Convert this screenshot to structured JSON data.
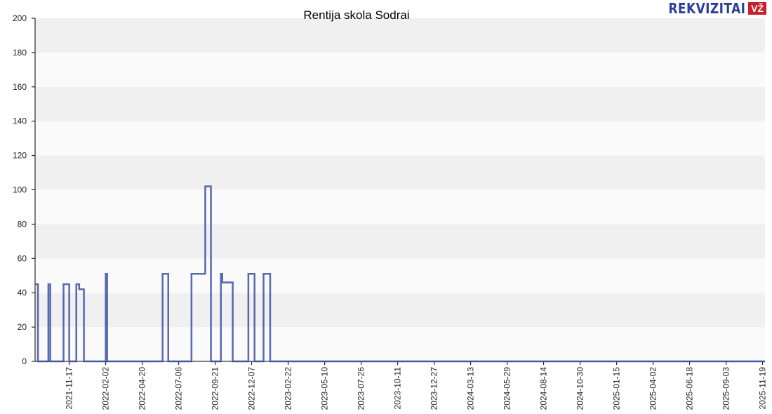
{
  "chart_data": {
    "type": "line",
    "title": "Rentija skola Sodrai",
    "xlabel": "",
    "ylabel": "",
    "ylim": [
      0,
      200
    ],
    "yticks": [
      0,
      20,
      40,
      60,
      80,
      100,
      120,
      140,
      160,
      180,
      200
    ],
    "xlim": [
      "2021-09-06",
      "2025-11-24"
    ],
    "xticks": [
      "2021-11-17",
      "2022-02-02",
      "2022-04-20",
      "2022-07-06",
      "2022-09-21",
      "2022-12-07",
      "2023-02-22",
      "2023-05-10",
      "2023-07-26",
      "2023-10-11",
      "2023-12-27",
      "2024-03-13",
      "2024-05-29",
      "2024-08-14",
      "2024-10-30",
      "2025-01-15",
      "2025-04-02",
      "2025-06-18",
      "2025-09-03",
      "2025-11-19"
    ],
    "grid": "horizontal bands",
    "line_color": "#3a4fa3",
    "step": true,
    "series": [
      {
        "points": [
          [
            "2021-09-06",
            45
          ],
          [
            "2021-09-12",
            0
          ],
          [
            "2021-10-04",
            45
          ],
          [
            "2021-10-08",
            0
          ],
          [
            "2021-11-05",
            45
          ],
          [
            "2021-11-17",
            0
          ],
          [
            "2021-12-02",
            45
          ],
          [
            "2021-12-08",
            42
          ],
          [
            "2021-12-18",
            0
          ],
          [
            "2022-02-02",
            51
          ],
          [
            "2022-02-05",
            0
          ],
          [
            "2022-06-02",
            51
          ],
          [
            "2022-06-14",
            0
          ],
          [
            "2022-08-02",
            51
          ],
          [
            "2022-08-31",
            102
          ],
          [
            "2022-09-12",
            0
          ],
          [
            "2022-10-03",
            51
          ],
          [
            "2022-10-06",
            46
          ],
          [
            "2022-10-28",
            0
          ],
          [
            "2022-11-30",
            51
          ],
          [
            "2022-12-13",
            0
          ],
          [
            "2023-01-01",
            51
          ],
          [
            "2023-01-15",
            0
          ],
          [
            "2025-11-24",
            0
          ]
        ]
      }
    ]
  },
  "logo": {
    "text": "REKVIZITAI",
    "badge": "VŽ"
  }
}
